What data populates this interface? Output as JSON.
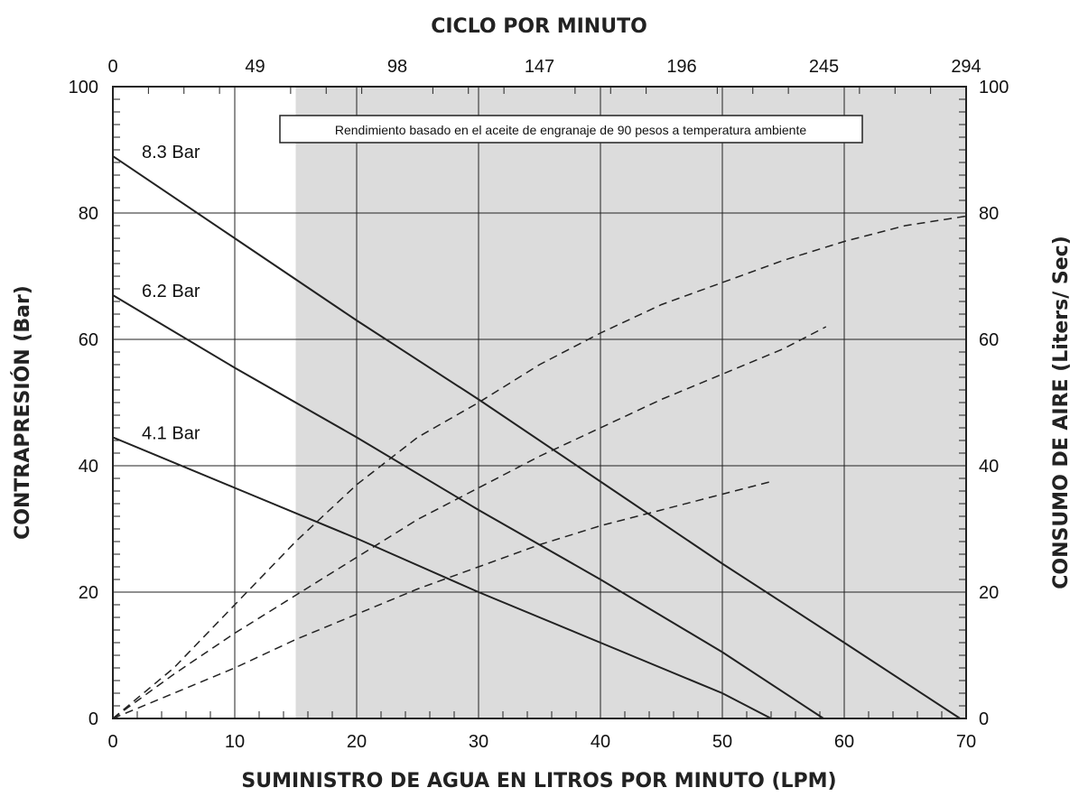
{
  "chart_data": {
    "type": "line",
    "note": "Rendimiento basado en el aceite de engranaje de 90 pesos a temperatura ambiente",
    "xlabel": "SUMINISTRO DE AGUA EN LITROS POR MINUTO (LPM)",
    "x2label": "CICLO POR MINUTO",
    "ylabel": "CONTRAPRESIÓN (Bar)",
    "y2label": "CONSUMO DE AIRE (Liters/ Sec)",
    "xlim": [
      0,
      70
    ],
    "ylim": [
      0,
      100
    ],
    "y2lim": [
      0,
      100
    ],
    "x_ticks": [
      "0",
      "10",
      "20",
      "30",
      "40",
      "50",
      "60",
      "70"
    ],
    "x2_ticks": [
      "0",
      "49",
      "98",
      "147",
      "196",
      "245",
      "294"
    ],
    "y_ticks": [
      "0",
      "20",
      "40",
      "60",
      "80",
      "100"
    ],
    "y2_ticks": [
      "0",
      "20",
      "40",
      "60",
      "80",
      "100"
    ],
    "grid": true,
    "shaded_region_x": [
      15,
      70
    ],
    "colors": {
      "line": "#222222",
      "shade": "#dcdcdc",
      "grid": "#222222"
    },
    "series": [
      {
        "name": "8.3 Bar",
        "style": "solid",
        "axis": "left",
        "points": [
          [
            0,
            89
          ],
          [
            10,
            76
          ],
          [
            20,
            63
          ],
          [
            30,
            50.5
          ],
          [
            40,
            37.5
          ],
          [
            50,
            24.5
          ],
          [
            60,
            12
          ],
          [
            69.5,
            0
          ]
        ]
      },
      {
        "name": "6.2 Bar",
        "style": "solid",
        "axis": "left",
        "points": [
          [
            0,
            67
          ],
          [
            10,
            55.5
          ],
          [
            20,
            44.5
          ],
          [
            30,
            33
          ],
          [
            40,
            22
          ],
          [
            50,
            10.5
          ],
          [
            58.3,
            0
          ]
        ]
      },
      {
        "name": "4.1 Bar",
        "style": "solid",
        "axis": "left",
        "points": [
          [
            0,
            44.5
          ],
          [
            10,
            36.5
          ],
          [
            20,
            28.5
          ],
          [
            30,
            20
          ],
          [
            40,
            12
          ],
          [
            50,
            4
          ],
          [
            54,
            0
          ]
        ]
      },
      {
        "style": "dashed",
        "axis": "right",
        "points": [
          [
            0,
            0
          ],
          [
            5,
            8
          ],
          [
            10,
            18
          ],
          [
            15,
            28
          ],
          [
            20,
            37
          ],
          [
            25,
            44.5
          ],
          [
            30,
            50
          ],
          [
            35,
            56
          ],
          [
            40,
            61
          ],
          [
            45,
            65.5
          ],
          [
            50,
            69
          ],
          [
            55,
            72.5
          ],
          [
            60,
            75.5
          ],
          [
            65,
            78
          ],
          [
            70,
            79.5
          ]
        ]
      },
      {
        "style": "dashed",
        "axis": "right",
        "points": [
          [
            0,
            0
          ],
          [
            5,
            7
          ],
          [
            10,
            13.5
          ],
          [
            15,
            19.5
          ],
          [
            20,
            25.5
          ],
          [
            25,
            31.5
          ],
          [
            30,
            36.5
          ],
          [
            35,
            41.5
          ],
          [
            40,
            46
          ],
          [
            45,
            50.5
          ],
          [
            50,
            54.5
          ],
          [
            55,
            58.5
          ],
          [
            58.5,
            62
          ]
        ]
      },
      {
        "style": "dashed",
        "axis": "right",
        "points": [
          [
            0,
            0
          ],
          [
            5,
            4
          ],
          [
            10,
            8
          ],
          [
            15,
            12.5
          ],
          [
            20,
            16.5
          ],
          [
            25,
            20.5
          ],
          [
            30,
            24
          ],
          [
            35,
            27.5
          ],
          [
            40,
            30.5
          ],
          [
            45,
            33
          ],
          [
            50,
            35.5
          ],
          [
            54,
            37.5
          ]
        ]
      }
    ]
  }
}
